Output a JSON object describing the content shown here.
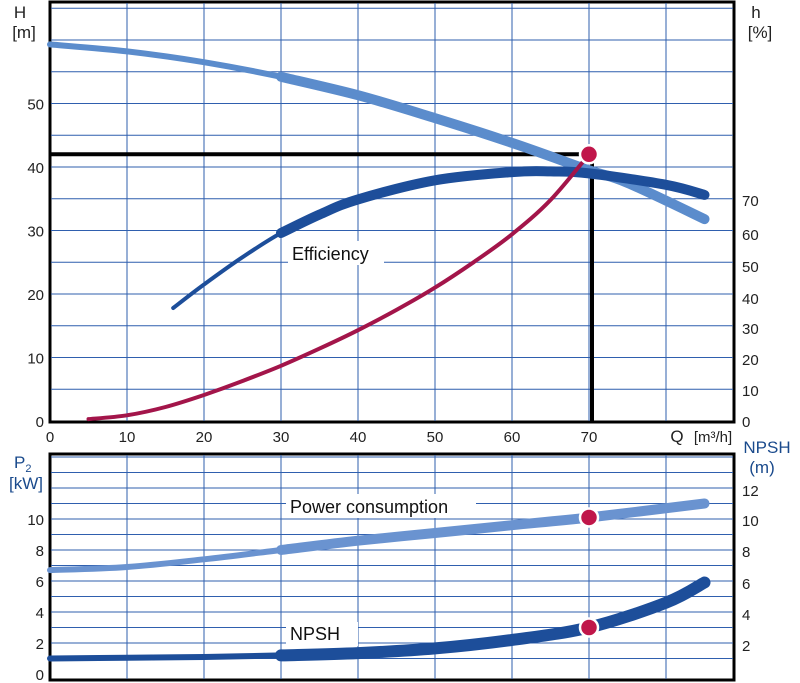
{
  "chart_data": [
    {
      "type": "line",
      "panel": "top",
      "xlabel": "Q [m³/h]",
      "xlabel_q": "Q",
      "xlabel_unit": "[m³/h]",
      "xlim": [
        0,
        90
      ],
      "x_ticks": [
        0,
        10,
        20,
        30,
        40,
        50,
        60,
        70
      ],
      "left_axis": {
        "label": "H",
        "unit": "[m]",
        "ylim": [
          0,
          60
        ],
        "ticks": [
          0,
          10,
          20,
          30,
          40,
          50
        ]
      },
      "right_axis": {
        "label": "h",
        "unit": "[%]",
        "ticks": [
          0,
          10,
          20,
          30,
          40,
          50,
          60,
          70
        ]
      },
      "grid": true,
      "series": [
        {
          "axis": "left",
          "color": "#5b8ccc",
          "x": [
            0,
            10,
            20,
            30,
            40,
            50,
            60,
            70,
            75,
            85
          ],
          "y": [
            59.3,
            58.2,
            56.5,
            54.2,
            51.3,
            47.7,
            43.8,
            39.5,
            37.5,
            31.8
          ]
        },
        {
          "name": "Efficiency",
          "axis": "left",
          "color": "#1d4e9a",
          "x": [
            16,
            20,
            25,
            30,
            35,
            40,
            50,
            60,
            65,
            70,
            80,
            85
          ],
          "y": [
            17.8,
            21.5,
            25.8,
            29.6,
            32.5,
            34.9,
            37.9,
            39.2,
            39.3,
            39.0,
            37.2,
            35.6
          ]
        },
        {
          "axis": "left",
          "color": "#a3154a",
          "x": [
            5,
            10,
            15,
            20,
            25,
            30,
            35,
            40,
            45,
            50,
            55,
            60,
            65,
            70
          ],
          "y": [
            0.3,
            0.9,
            2.2,
            4.1,
            6.3,
            8.7,
            11.4,
            14.3,
            17.5,
            21.0,
            25.0,
            29.4,
            34.8,
            42.0
          ]
        }
      ],
      "annotations": [
        {
          "type": "marker",
          "x": 70,
          "y": 42,
          "color": "#c0164a"
        },
        {
          "type": "guide",
          "x": 70,
          "y": 42,
          "color": "#000000"
        }
      ]
    },
    {
      "type": "line",
      "panel": "bottom",
      "left_axis": {
        "label": "P2",
        "label_main": "P",
        "label_sub": "2",
        "unit": "[kW]",
        "ylim": [
          0,
          12
        ],
        "ticks": [
          0,
          2,
          4,
          6,
          8,
          10
        ]
      },
      "right_axis": {
        "label": "NPSH",
        "unit": "(m)",
        "ticks": [
          2,
          4,
          6,
          8,
          10,
          12
        ]
      },
      "grid": true,
      "series": [
        {
          "name": "Power consumption",
          "color": "#6a93d0",
          "x": [
            0,
            10,
            20,
            30,
            40,
            50,
            60,
            70,
            85
          ],
          "y": [
            6.7,
            6.9,
            7.4,
            8.0,
            8.6,
            9.1,
            9.6,
            10.1,
            11.0
          ]
        },
        {
          "name": "NPSH",
          "color": "#1d4e9a",
          "x": [
            0,
            10,
            20,
            30,
            40,
            50,
            60,
            70,
            80,
            85
          ],
          "y": [
            1.0,
            1.05,
            1.1,
            1.2,
            1.35,
            1.65,
            2.2,
            3.0,
            4.6,
            5.9
          ]
        }
      ],
      "annotations": [
        {
          "type": "marker",
          "x": 70,
          "y": 10.1,
          "color": "#c0164a"
        },
        {
          "type": "marker",
          "x": 70,
          "y": 3.0,
          "color": "#c0164a"
        }
      ]
    }
  ]
}
